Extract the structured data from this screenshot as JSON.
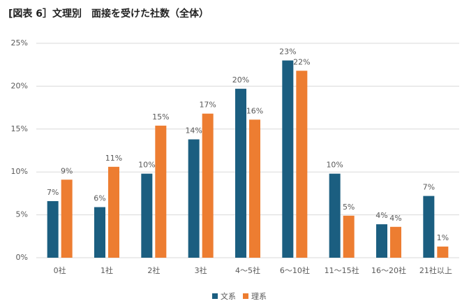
{
  "chart_data": {
    "type": "bar",
    "title": "[図表 6］文理別　面接を受けた社数（全体）",
    "categories": [
      "0社",
      "1社",
      "2社",
      "3社",
      "4〜5社",
      "6〜10社",
      "11〜15社",
      "16〜20社",
      "21社以上"
    ],
    "series": [
      {
        "name": "文系",
        "color": "#1b5e80",
        "values": [
          6.6,
          5.9,
          9.8,
          13.8,
          19.7,
          23.0,
          9.8,
          3.9,
          7.2
        ],
        "value_labels": [
          "7%",
          "6%",
          "10%",
          "14%",
          "20%",
          "23%",
          "10%",
          "4%",
          "7%"
        ]
      },
      {
        "name": "理系",
        "color": "#ed7d31",
        "values": [
          9.1,
          10.6,
          15.4,
          16.8,
          16.1,
          21.8,
          4.9,
          3.6,
          1.3
        ],
        "value_labels": [
          "9%",
          "11%",
          "15%",
          "17%",
          "16%",
          "22%",
          "5%",
          "4%",
          "1%"
        ]
      }
    ],
    "ylim": [
      0,
      25
    ],
    "yticks": [
      {
        "value": 0,
        "label": "0%"
      },
      {
        "value": 5,
        "label": "5%"
      },
      {
        "value": 10,
        "label": "10%"
      },
      {
        "value": 15,
        "label": "15%"
      },
      {
        "value": 20,
        "label": "20%"
      },
      {
        "value": 25,
        "label": "25%"
      }
    ],
    "grid": true,
    "legend": "bottom"
  }
}
